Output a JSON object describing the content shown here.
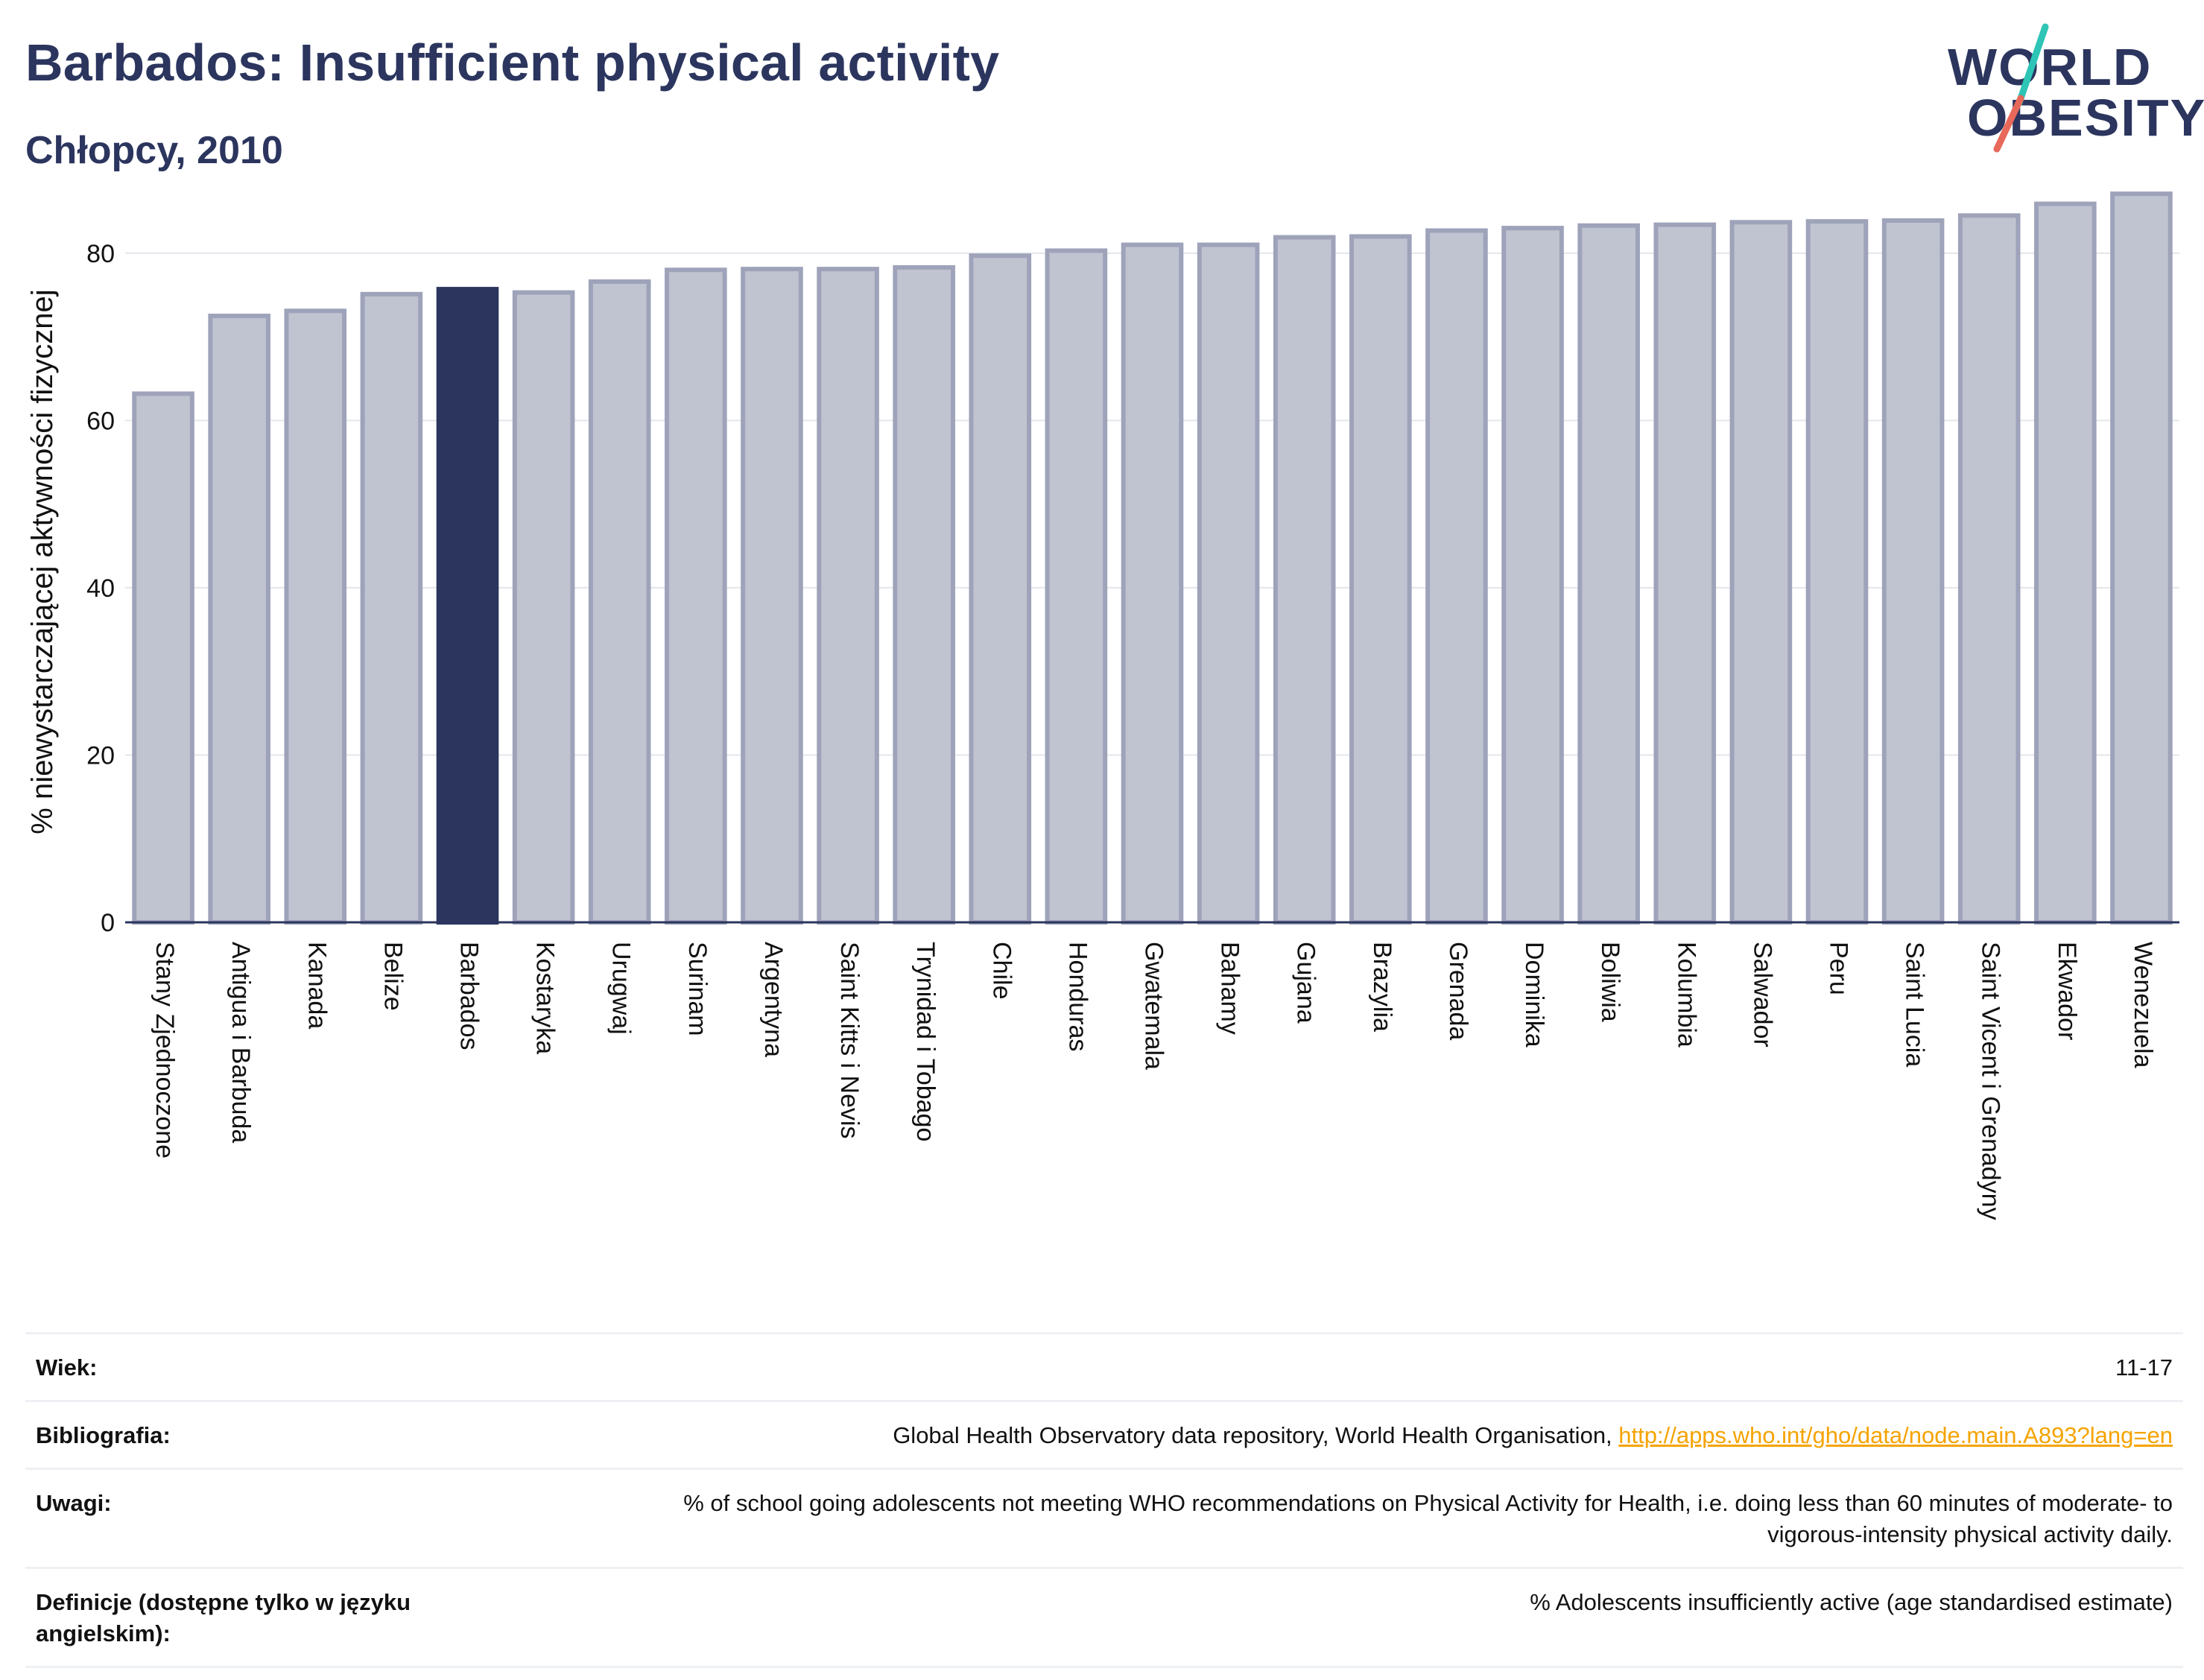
{
  "header": {
    "title": "Barbados: Insufficient physical activity",
    "subtitle": "Chłopcy, 2010"
  },
  "logo": {
    "line1": "WORLD",
    "line2": "OBESITY",
    "slash_color_top": "#2ec4b6",
    "slash_color_bottom": "#e8695a"
  },
  "colors": {
    "bar_default": "#c0c3d0",
    "bar_border": "#9ea3ba",
    "bar_highlight": "#2b355e",
    "text": "#2b355e"
  },
  "chart_data": {
    "type": "bar",
    "ylabel": "% niewystarczającej aktywności fizycznej",
    "xlabel": "",
    "ylim": [
      0,
      88
    ],
    "yticks": [
      0,
      20,
      40,
      60,
      80
    ],
    "grid": true,
    "highlight": "Barbados",
    "categories": [
      "Stany Zjednoczone",
      "Antigua i Barbuda",
      "Kanada",
      "Belize",
      "Barbados",
      "Kostaryka",
      "Urugwaj",
      "Surinam",
      "Argentyna",
      "Saint Kitts i Nevis",
      "Trynidad i Tobago",
      "Chile",
      "Honduras",
      "Gwatemala",
      "Bahamy",
      "Gujana",
      "Brazylia",
      "Grenada",
      "Dominika",
      "Boliwia",
      "Kolumbia",
      "Salwador",
      "Peru",
      "Saint Lucia",
      "Saint Vicent i Grenadyny",
      "Ekwador",
      "Wenezuela"
    ],
    "values": [
      63.2,
      72.5,
      73.1,
      75.1,
      75.7,
      75.3,
      76.6,
      78.0,
      78.1,
      78.1,
      78.3,
      79.7,
      80.3,
      81.0,
      81.0,
      81.9,
      82.0,
      82.7,
      83.0,
      83.3,
      83.4,
      83.7,
      83.8,
      83.9,
      84.5,
      85.9,
      87.1
    ]
  },
  "meta": [
    {
      "label": "Wiek:",
      "value": "11-17"
    },
    {
      "label": "Bibliografia:",
      "value": "Global Health Observatory data repository, World Health Organisation, ",
      "link": "http://apps.who.int/gho/data/node.main.A893?lang=en"
    },
    {
      "label": "Uwagi:",
      "value": "% of school going adolescents not meeting WHO recommendations on Physical Activity for Health, i.e. doing less than 60 minutes of moderate- to vigorous-intensity physical activity daily."
    },
    {
      "label": "Definicje (dostępne tylko w języku angielskim):",
      "value": "% Adolescents insufficiently active (age standardised estimate)"
    }
  ]
}
